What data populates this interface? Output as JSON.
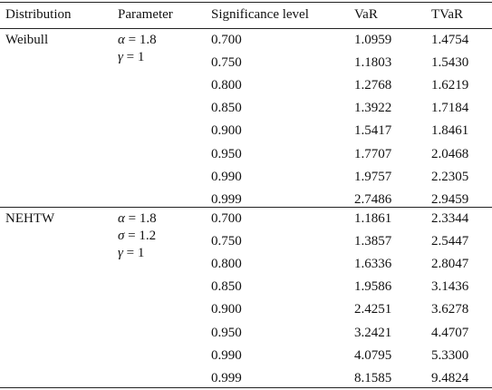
{
  "headers": [
    "Distribution",
    "Parameter",
    "Significance level",
    "VaR",
    "TVaR"
  ],
  "groups": [
    {
      "distribution": "Weibull",
      "parameters": [
        {
          "symbol": "α",
          "value": " = 1.8"
        },
        {
          "symbol": "γ",
          "value": " = 1"
        }
      ],
      "rows": [
        [
          "0.700",
          "1.0959",
          "1.4754"
        ],
        [
          "0.750",
          "1.1803",
          "1.5430"
        ],
        [
          "0.800",
          "1.2768",
          "1.6219"
        ],
        [
          "0.850",
          "1.3922",
          "1.7184"
        ],
        [
          "0.900",
          "1.5417",
          "1.8461"
        ],
        [
          "0.950",
          "1.7707",
          "2.0468"
        ],
        [
          "0.990",
          "1.9757",
          "2.2305"
        ],
        [
          "0.999",
          "2.7486",
          "2.9459"
        ]
      ]
    },
    {
      "distribution": "NEHTW",
      "parameters": [
        {
          "symbol": "α",
          "value": " = 1.8"
        },
        {
          "symbol": "σ",
          "value": " = 1.2"
        },
        {
          "symbol": "γ",
          "value": " = 1"
        }
      ],
      "rows": [
        [
          "0.700",
          "1.1861",
          "2.3344"
        ],
        [
          "0.750",
          "1.3857",
          "2.5447"
        ],
        [
          "0.800",
          "1.6336",
          "2.8047"
        ],
        [
          "0.850",
          "1.9586",
          "3.1436"
        ],
        [
          "0.900",
          "2.4251",
          "3.6278"
        ],
        [
          "0.950",
          "3.2421",
          "4.4707"
        ],
        [
          "0.990",
          "4.0795",
          "5.3300"
        ],
        [
          "0.999",
          "8.1585",
          "9.4824"
        ]
      ]
    }
  ]
}
